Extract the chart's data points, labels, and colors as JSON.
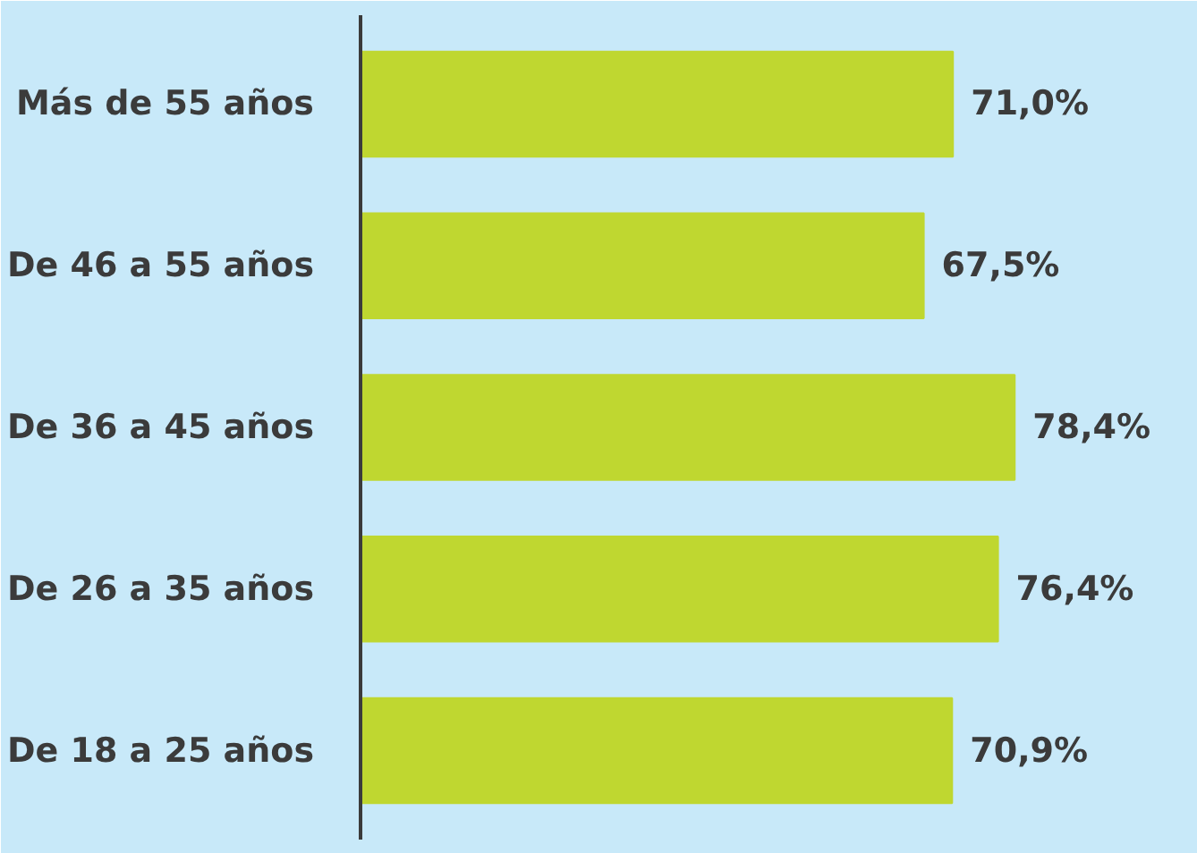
{
  "chart_data": {
    "type": "bar",
    "orientation": "horizontal",
    "categories": [
      "Más de 55 años",
      "De 46 a 55 años",
      "De 36 a 45 años",
      "De 26 a 35 años",
      "De 18 a 25 años"
    ],
    "values": [
      71.0,
      67.5,
      78.4,
      76.4,
      70.9
    ],
    "value_labels": [
      "71,0%",
      "67,5%",
      "78,4%",
      "76,4%",
      "70,9%"
    ],
    "color": "#bfd730",
    "grid": false,
    "tick_labels": "y"
  }
}
